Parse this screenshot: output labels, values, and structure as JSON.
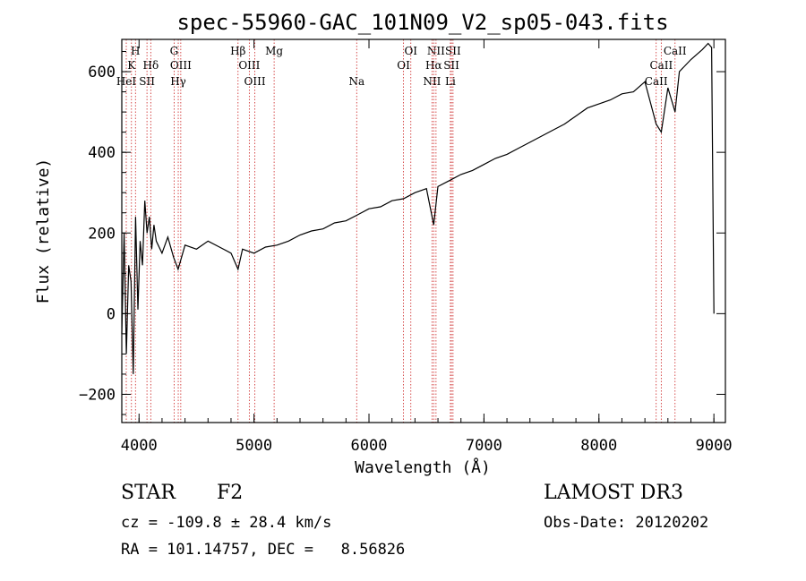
{
  "chart_data": {
    "type": "line",
    "title": "spec-55960-GAC_101N09_V2_sp05-043.fits",
    "xlabel": "Wavelength (Å)",
    "ylabel": "Flux (relative)",
    "xlim": [
      3850,
      9100
    ],
    "ylim": [
      -270,
      680
    ],
    "xticks": [
      4000,
      5000,
      6000,
      7000,
      8000,
      9000
    ],
    "yticks": [
      -200,
      0,
      200,
      400,
      600
    ],
    "series": [
      {
        "name": "flux",
        "x": [
          3850,
          3870,
          3890,
          3910,
          3930,
          3950,
          3970,
          3990,
          4010,
          4030,
          4050,
          4070,
          4090,
          4110,
          4130,
          4150,
          4200,
          4250,
          4300,
          4340,
          4400,
          4500,
          4600,
          4700,
          4800,
          4861,
          4900,
          5000,
          5100,
          5200,
          5300,
          5400,
          5500,
          5600,
          5700,
          5800,
          5900,
          6000,
          6100,
          6200,
          6300,
          6400,
          6500,
          6563,
          6600,
          6700,
          6800,
          6900,
          7000,
          7100,
          7200,
          7300,
          7400,
          7500,
          7600,
          7700,
          7800,
          7900,
          8000,
          8100,
          8200,
          8300,
          8400,
          8498,
          8542,
          8600,
          8662,
          8700,
          8800,
          8900,
          8950,
          8980,
          9000
        ],
        "y": [
          -50,
          200,
          -100,
          120,
          80,
          -150,
          240,
          10,
          180,
          120,
          280,
          200,
          240,
          160,
          220,
          180,
          150,
          190,
          140,
          110,
          170,
          160,
          180,
          165,
          150,
          110,
          160,
          150,
          165,
          170,
          180,
          195,
          205,
          210,
          225,
          230,
          245,
          260,
          265,
          280,
          285,
          300,
          310,
          220,
          315,
          330,
          345,
          355,
          370,
          385,
          395,
          410,
          425,
          440,
          455,
          470,
          490,
          510,
          520,
          530,
          545,
          550,
          575,
          470,
          450,
          560,
          500,
          600,
          630,
          655,
          670,
          660,
          0
        ]
      }
    ],
    "lines": [
      {
        "label": "H",
        "row": 0,
        "lam": 3969
      },
      {
        "label": "K",
        "row": 1,
        "lam": 3934
      },
      {
        "label": "HeI",
        "row": 2,
        "lam": 3889
      },
      {
        "label": "SII",
        "row": 2,
        "lam": 4069
      },
      {
        "label": "Hδ",
        "row": 1,
        "lam": 4102
      },
      {
        "label": "G",
        "row": 0,
        "lam": 4305
      },
      {
        "label": "OIII",
        "row": 1,
        "lam": 4363
      },
      {
        "label": "Hγ",
        "row": 2,
        "lam": 4341
      },
      {
        "label": "Hβ",
        "row": 0,
        "lam": 4861
      },
      {
        "label": "OIII",
        "row": 1,
        "lam": 4959
      },
      {
        "label": "OIII",
        "row": 2,
        "lam": 5007
      },
      {
        "label": "Mg",
        "row": 0,
        "lam": 5175
      },
      {
        "label": "Na",
        "row": 2,
        "lam": 5893
      },
      {
        "label": "OI",
        "row": 0,
        "lam": 6364
      },
      {
        "label": "OI",
        "row": 1,
        "lam": 6300
      },
      {
        "label": "NII",
        "row": 0,
        "lam": 6583
      },
      {
        "label": "Hα",
        "row": 1,
        "lam": 6563
      },
      {
        "label": "NII",
        "row": 2,
        "lam": 6548
      },
      {
        "label": "SII",
        "row": 0,
        "lam": 6731
      },
      {
        "label": "SII",
        "row": 1,
        "lam": 6717
      },
      {
        "label": "Li",
        "row": 2,
        "lam": 6708
      },
      {
        "label": "CaII",
        "row": 0,
        "lam": 8662
      },
      {
        "label": "CaII",
        "row": 1,
        "lam": 8542
      },
      {
        "label": "CaII",
        "row": 2,
        "lam": 8498
      }
    ]
  },
  "info": {
    "class": "STAR",
    "subclass": "F2",
    "survey": "LAMOST DR3",
    "cz": "cz = -109.8 ± 28.4 km/s",
    "obsdate": "Obs-Date: 20120202",
    "radec": "RA = 101.14757, DEC =   8.56826"
  },
  "colors": {
    "line_marker": "#cc2222",
    "spectrum": "#000000"
  }
}
